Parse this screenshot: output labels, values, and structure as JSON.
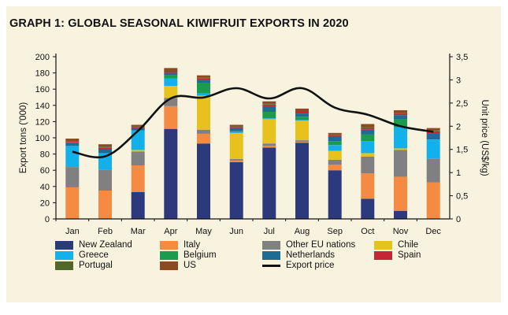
{
  "chart_data": {
    "type": "bar",
    "title": "GRAPH 1: GLOBAL SEASONAL KIWIFRUIT EXPORTS IN 2020",
    "categories": [
      "Jan",
      "Feb",
      "Mar",
      "Apr",
      "May",
      "Jun",
      "Jul",
      "Aug",
      "Sep",
      "Oct",
      "Nov",
      "Dec"
    ],
    "ylabel": "Export tons ('000)",
    "y2label": "Unit price (US$/kg)",
    "ylim": [
      0,
      200
    ],
    "y2lim": [
      0,
      3.5
    ],
    "yticks": [
      "0",
      "20",
      "40",
      "60",
      "80",
      "100",
      "120",
      "140",
      "160",
      "180",
      "200"
    ],
    "y2ticks": [
      "0",
      "0,5",
      "1",
      "1,5",
      "2",
      "2,5",
      "3",
      "3,5"
    ],
    "grid": false,
    "legend_position": "bottom",
    "series": [
      {
        "name": "New Zealand",
        "color": "#2c3a7c",
        "values": [
          0,
          0,
          33,
          111,
          93,
          70,
          88,
          94,
          60,
          25,
          10,
          0
        ]
      },
      {
        "name": "Italy",
        "color": "#f58a42",
        "values": [
          39,
          35,
          33,
          28,
          12,
          2,
          2,
          1,
          7,
          31,
          42,
          45
        ]
      },
      {
        "name": "Other EU nations",
        "color": "#808080",
        "values": [
          25,
          26,
          17,
          10,
          5,
          2,
          3,
          2,
          6,
          21,
          33,
          29
        ]
      },
      {
        "name": "Chile",
        "color": "#e8c21c",
        "values": [
          0,
          0,
          2,
          15,
          42,
          32,
          30,
          24,
          11,
          4,
          2,
          0
        ]
      },
      {
        "name": "Greece",
        "color": "#12b1ec",
        "values": [
          26,
          20,
          24,
          9,
          3,
          1,
          1,
          1,
          7,
          15,
          26,
          24
        ]
      },
      {
        "name": "Belgium",
        "color": "#1a9c4c",
        "values": [
          0,
          0,
          0,
          4,
          13,
          1,
          8,
          4,
          5,
          8,
          10,
          0
        ]
      },
      {
        "name": "Netherlands",
        "color": "#1e6c93",
        "values": [
          4,
          5,
          3,
          3,
          3,
          4,
          7,
          4,
          6,
          6,
          5,
          7
        ]
      },
      {
        "name": "Spain",
        "color": "#c62737",
        "values": [
          1,
          2,
          1,
          2,
          2,
          1,
          2,
          2,
          1,
          2,
          2,
          3
        ]
      },
      {
        "name": "Portugal",
        "color": "#52672a",
        "values": [
          1,
          1,
          1,
          1,
          1,
          1,
          1,
          1,
          1,
          1,
          1,
          1
        ]
      },
      {
        "name": "US",
        "color": "#8a4b23",
        "values": [
          3,
          3,
          2,
          3,
          3,
          2,
          3,
          3,
          2,
          4,
          3,
          3
        ]
      }
    ],
    "line_series": {
      "name": "Export price",
      "color": "#111111",
      "axis": "right",
      "values": [
        1.45,
        1.35,
        1.9,
        2.6,
        2.62,
        2.82,
        2.6,
        2.82,
        2.4,
        2.25,
        2.0,
        1.88
      ]
    }
  }
}
